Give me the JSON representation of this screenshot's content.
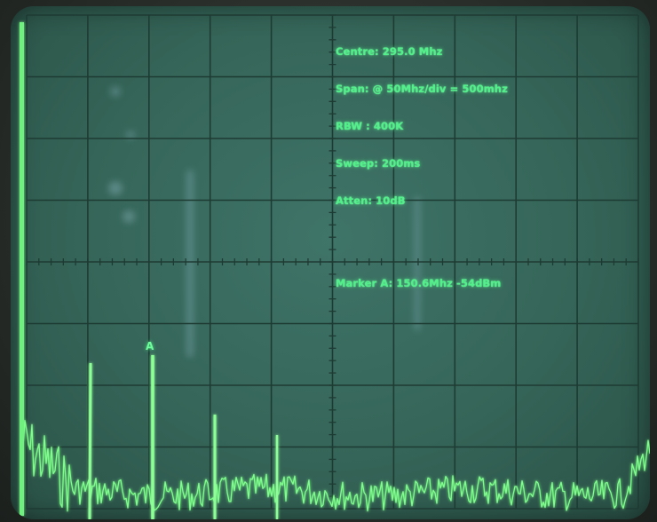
{
  "readout": {
    "centre": "Centre: 295.0 Mhz",
    "span": "Span: @ 50Mhz/div = 500mhz",
    "rbw": "RBW : 400K",
    "sweep": "Sweep: 200ms",
    "atten": "Atten: 10dB",
    "marker": "Marker A: 150.6Mhz -54dBm"
  },
  "marker_label": "A",
  "colors": {
    "trace": "#7dff8a",
    "screen": "#356558",
    "graticule": "#1f3a33",
    "text": "#52f08a"
  }
}
